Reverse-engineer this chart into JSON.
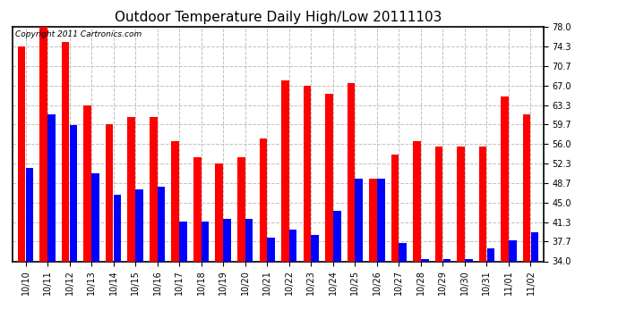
{
  "title": "Outdoor Temperature Daily High/Low 20111103",
  "copyright_text": "Copyright 2011 Cartronics.com",
  "dates": [
    "10/10",
    "10/11",
    "10/12",
    "10/13",
    "10/14",
    "10/15",
    "10/16",
    "10/17",
    "10/18",
    "10/19",
    "10/20",
    "10/21",
    "10/22",
    "10/23",
    "10/24",
    "10/25",
    "10/26",
    "10/27",
    "10/28",
    "10/29",
    "10/30",
    "10/31",
    "11/01",
    "11/02"
  ],
  "highs": [
    74.3,
    78.0,
    75.2,
    63.3,
    59.7,
    61.0,
    61.0,
    56.5,
    53.5,
    52.3,
    53.5,
    57.0,
    68.0,
    67.0,
    65.5,
    67.5,
    49.5,
    54.0,
    56.5,
    55.5,
    55.5,
    55.5,
    65.0,
    61.5
  ],
  "lows": [
    51.5,
    61.5,
    59.5,
    50.5,
    46.5,
    47.5,
    48.0,
    41.5,
    41.5,
    42.0,
    42.0,
    38.5,
    40.0,
    39.0,
    43.5,
    49.5,
    49.5,
    37.5,
    34.5,
    34.5,
    34.5,
    36.5,
    38.0,
    39.5
  ],
  "high_color": "#ff0000",
  "low_color": "#0000ff",
  "bg_color": "#ffffff",
  "plot_bg_color": "#ffffff",
  "grid_color": "#c0c0c0",
  "ylim_min": 34.0,
  "ylim_max": 78.0,
  "yticks": [
    34.0,
    37.7,
    41.3,
    45.0,
    48.7,
    52.3,
    56.0,
    59.7,
    63.3,
    67.0,
    70.7,
    74.3,
    78.0
  ],
  "title_fontsize": 11,
  "copyright_fontsize": 6.5,
  "tick_fontsize": 7,
  "bar_width": 0.35,
  "bar_gap": 0.01
}
